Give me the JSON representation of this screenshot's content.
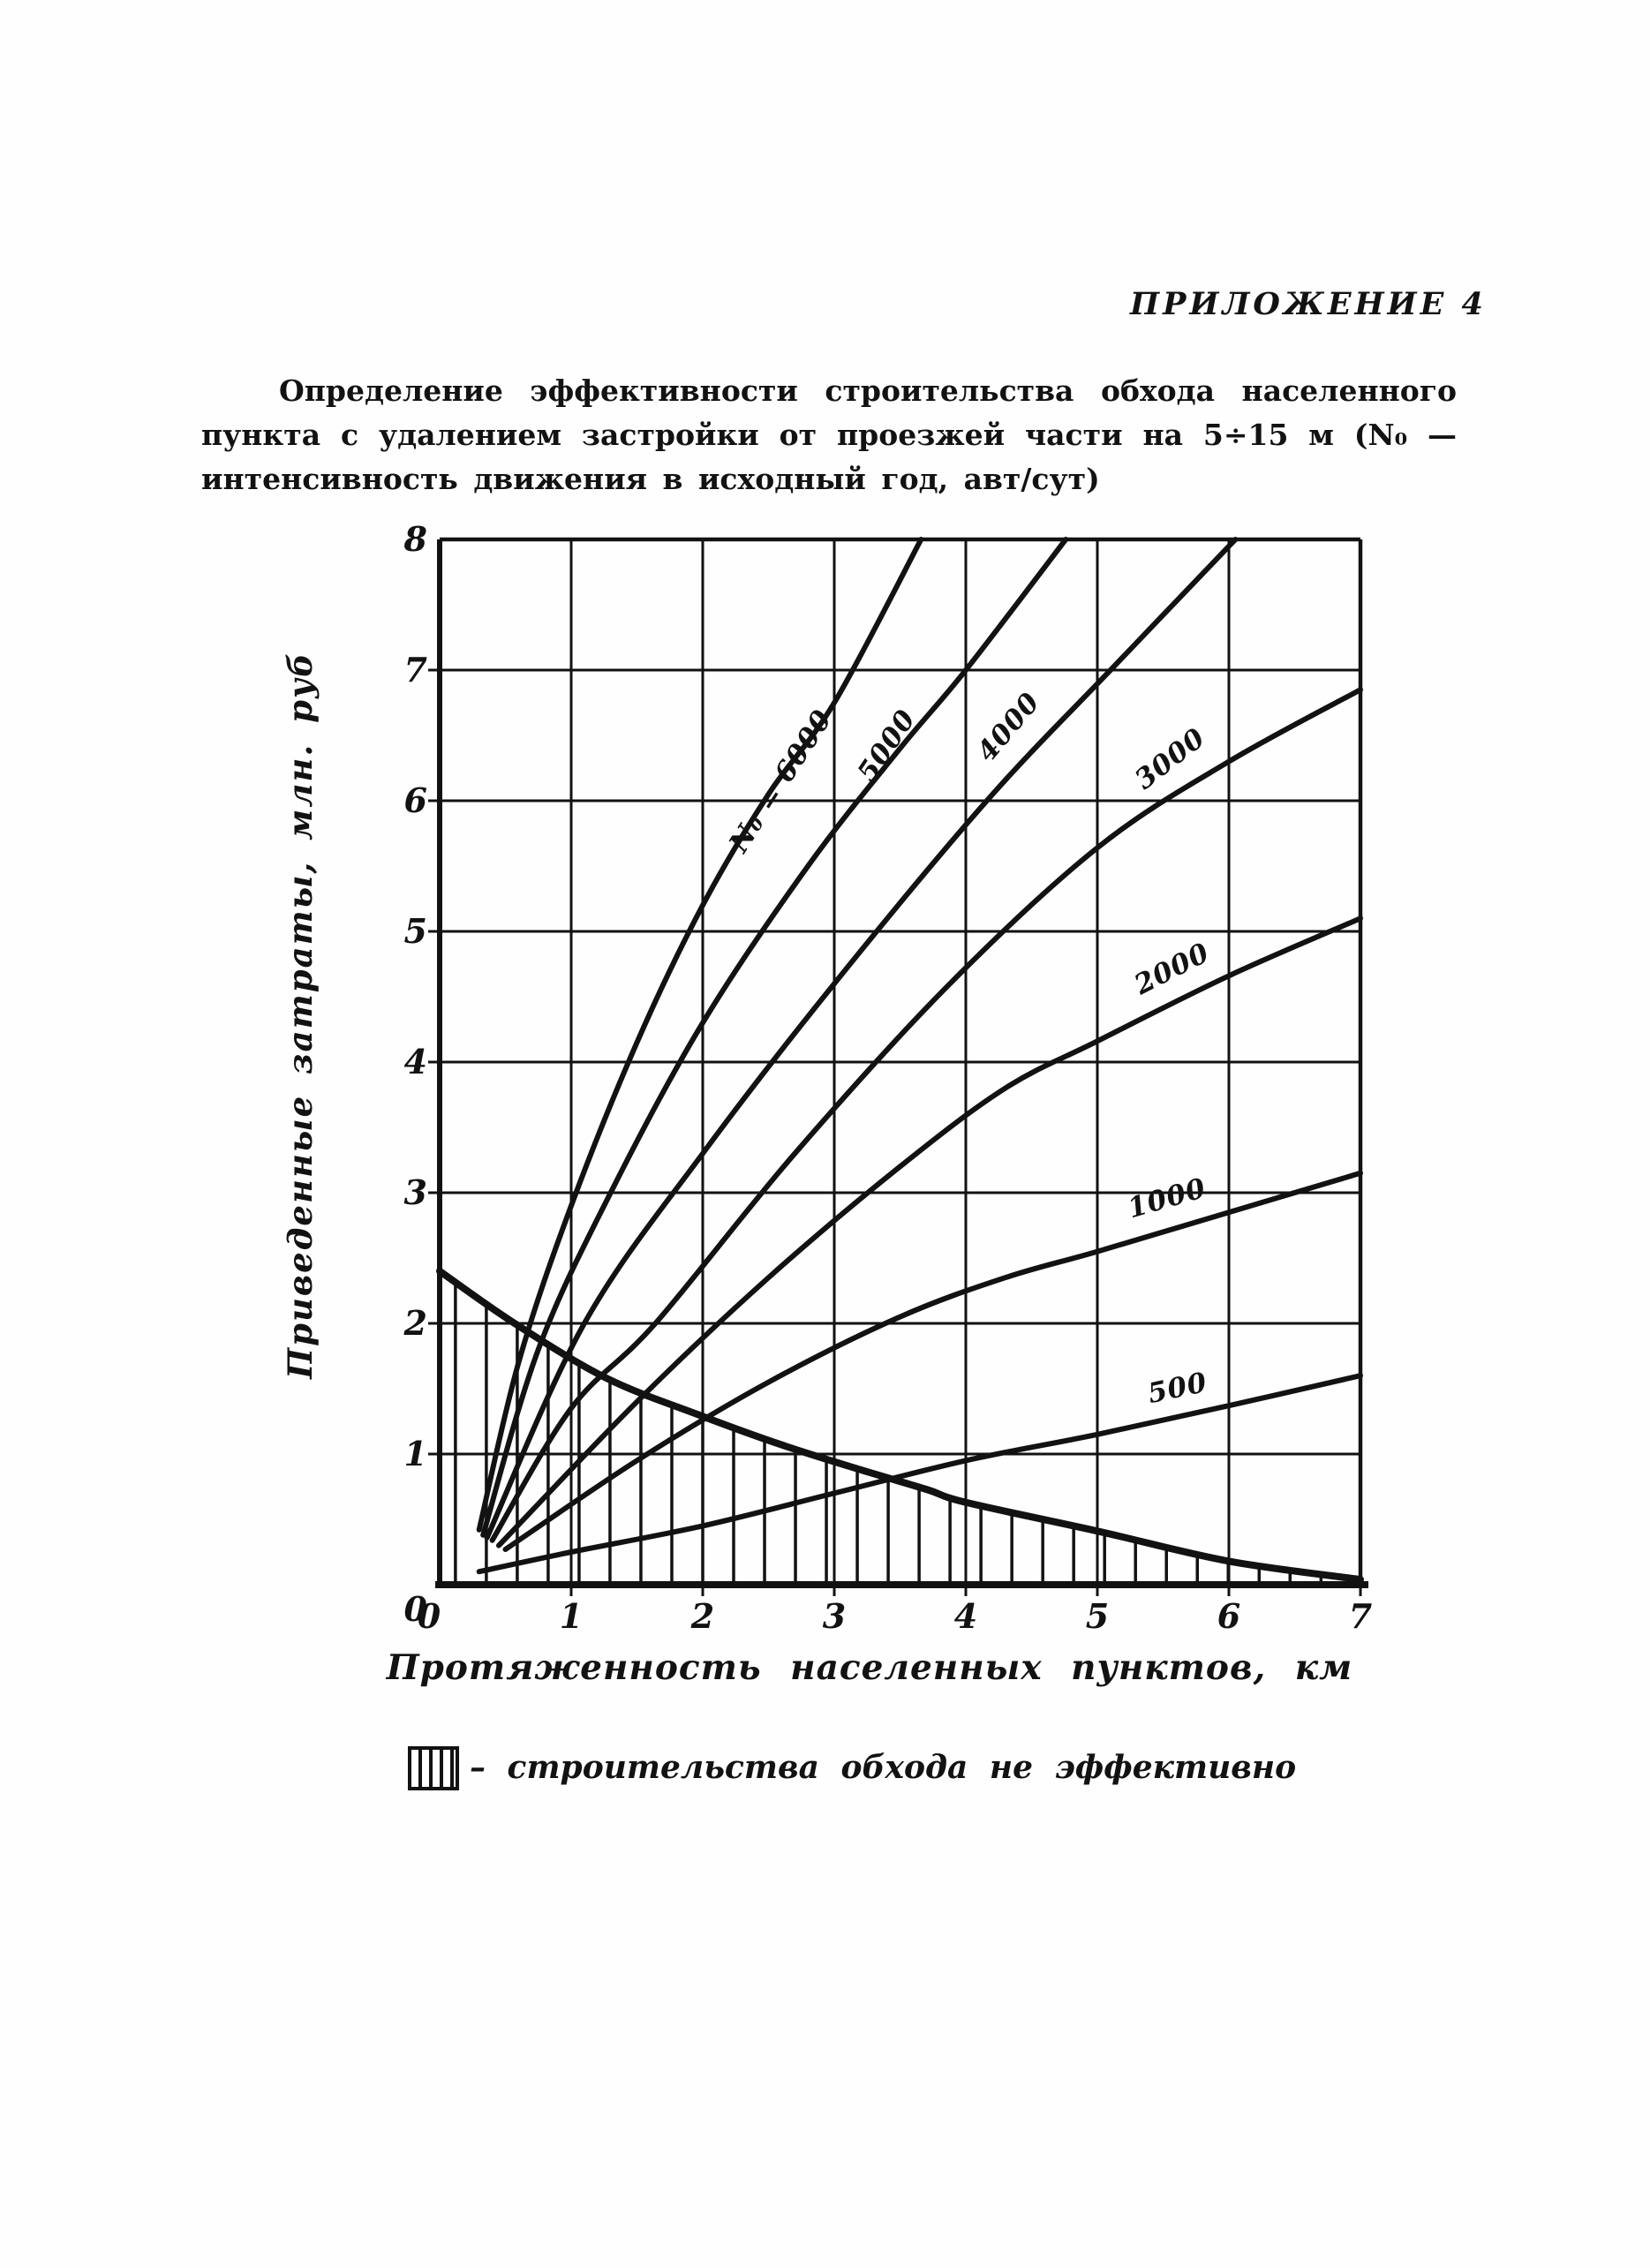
{
  "page": {
    "appendix_label": "ПРИЛОЖЕНИЕ 4",
    "description": "Определение эффективности строительства обхода населенного пункта с удалением застройки от проезжей части на 5÷15 м (N₀ — интенсивность движения в исходный год, авт/сут)"
  },
  "chart_data": {
    "type": "line",
    "title": "",
    "xlabel": "Протяженность населенных пунктов, км",
    "ylabel": "Приведенные затраты, млн. руб",
    "xlim": [
      0,
      7
    ],
    "ylim": [
      0,
      8
    ],
    "x_ticks": [
      "0",
      "1",
      "2",
      "3",
      "4",
      "5",
      "6",
      "7"
    ],
    "y_ticks": [
      "0",
      "1",
      "2",
      "3",
      "4",
      "5",
      "6",
      "7",
      "8"
    ],
    "grid": true,
    "legend_text": "– строительства обхода не эффективно",
    "line_color": "#121212",
    "series": [
      {
        "name": "N0-6000",
        "label": "N₀ = 6000",
        "points": [
          [
            0.3,
            0.42
          ],
          [
            0.6,
            1.7
          ],
          [
            1.0,
            2.9
          ],
          [
            1.5,
            4.15
          ],
          [
            2.0,
            5.2
          ],
          [
            2.5,
            6.05
          ],
          [
            3.0,
            6.75
          ],
          [
            3.66,
            8.0
          ]
        ],
        "label_at": [
          2.6,
          6.15
        ],
        "label_rotation": -57
      },
      {
        "name": "N0-5000",
        "label": "5000",
        "points": [
          [
            0.33,
            0.38
          ],
          [
            0.75,
            1.8
          ],
          [
            1.3,
            3.0
          ],
          [
            2.0,
            4.3
          ],
          [
            2.8,
            5.5
          ],
          [
            3.5,
            6.4
          ],
          [
            4.0,
            7.0
          ],
          [
            4.76,
            8.0
          ]
        ],
        "label_at": [
          3.4,
          6.42
        ],
        "label_rotation": -56
      },
      {
        "name": "N0-4000",
        "label": "4000",
        "points": [
          [
            0.36,
            0.36
          ],
          [
            1.1,
            2.0
          ],
          [
            2.0,
            3.3
          ],
          [
            3.0,
            4.6
          ],
          [
            4.16,
            6.0
          ],
          [
            5.1,
            7.0
          ],
          [
            6.05,
            8.0
          ]
        ],
        "label_at": [
          4.33,
          6.56
        ],
        "label_rotation": -50
      },
      {
        "name": "N0-3000",
        "label": "3000",
        "points": [
          [
            0.4,
            0.34
          ],
          [
            1.0,
            1.35
          ],
          [
            1.64,
            2.0
          ],
          [
            2.7,
            3.3
          ],
          [
            3.86,
            4.58
          ],
          [
            5.0,
            5.64
          ],
          [
            6.0,
            6.3
          ],
          [
            7.0,
            6.85
          ]
        ],
        "label_at": [
          5.56,
          6.32
        ],
        "label_rotation": -38
      },
      {
        "name": "N0-2000",
        "label": "2000",
        "points": [
          [
            0.45,
            0.3
          ],
          [
            1.5,
            1.4
          ],
          [
            2.5,
            2.35
          ],
          [
            3.5,
            3.2
          ],
          [
            4.3,
            3.8
          ],
          [
            5.0,
            4.16
          ],
          [
            6.0,
            4.66
          ],
          [
            7.0,
            5.1
          ]
        ],
        "label_at": [
          5.57,
          4.71
        ],
        "label_rotation": -27
      },
      {
        "name": "N0-1000",
        "label": "1000",
        "points": [
          [
            0.5,
            0.27
          ],
          [
            1.5,
            0.95
          ],
          [
            2.5,
            1.55
          ],
          [
            3.5,
            2.05
          ],
          [
            4.3,
            2.35
          ],
          [
            5.0,
            2.55
          ],
          [
            6.0,
            2.85
          ],
          [
            7.0,
            3.15
          ]
        ],
        "label_at": [
          5.53,
          2.95
        ],
        "label_rotation": -16
      },
      {
        "name": "N0-500",
        "label": "500",
        "points": [
          [
            0.3,
            0.1
          ],
          [
            1.0,
            0.25
          ],
          [
            2.0,
            0.45
          ],
          [
            3.0,
            0.7
          ],
          [
            4.0,
            0.95
          ],
          [
            5.0,
            1.15
          ],
          [
            6.0,
            1.37
          ],
          [
            7.0,
            1.6
          ]
        ],
        "label_at": [
          5.61,
          1.5
        ],
        "label_rotation": -12
      }
    ],
    "boundary": {
      "name": "effectiveness-boundary",
      "points": [
        [
          0.0,
          2.4
        ],
        [
          0.57,
          2.0
        ],
        [
          1.27,
          1.58
        ],
        [
          1.97,
          1.3
        ],
        [
          2.6,
          1.07
        ],
        [
          3.2,
          0.88
        ],
        [
          3.7,
          0.73
        ],
        [
          4.0,
          0.63
        ],
        [
          5.0,
          0.41
        ],
        [
          6.0,
          0.18
        ],
        [
          7.0,
          0.04
        ]
      ]
    },
    "hatch": {
      "start": 0.12,
      "step": 0.235,
      "end": 6.96
    }
  }
}
